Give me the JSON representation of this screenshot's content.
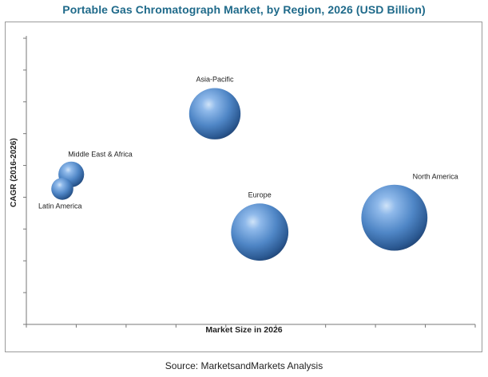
{
  "chart_data": {
    "type": "bubble",
    "title": "Portable Gas Chromatograph Market, by Region, 2026 (USD Billion)",
    "xlabel": "Market Size in 2026",
    "ylabel": "CAGR (2016-2026)",
    "x_ticks_labeled": false,
    "y_ticks_labeled": false,
    "grid": false,
    "series": [
      {
        "name": "Asia-Pacific",
        "x": 0.42,
        "y": 0.73,
        "size": 0.7
      },
      {
        "name": "Middle East & Africa",
        "x": 0.1,
        "y": 0.52,
        "size": 0.35
      },
      {
        "name": "Latin America",
        "x": 0.08,
        "y": 0.47,
        "size": 0.3
      },
      {
        "name": "Europe",
        "x": 0.52,
        "y": 0.32,
        "size": 0.78
      },
      {
        "name": "North America",
        "x": 0.82,
        "y": 0.37,
        "size": 0.9
      }
    ]
  },
  "source": "Source:  MarketsandMarkets Analysis",
  "colors": {
    "title": "#1f6a8a",
    "bubble_light": "#a8cdf3",
    "bubble_mid": "#4f86c6",
    "bubble_dark": "#1d3f6e"
  }
}
